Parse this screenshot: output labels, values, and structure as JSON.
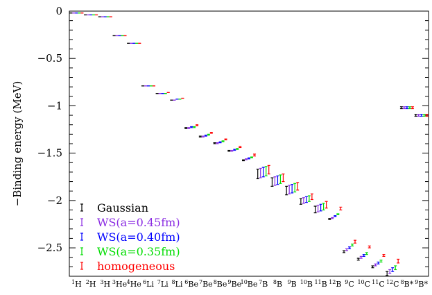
{
  "chart_data": {
    "type": "scatter",
    "title": "",
    "xlabel": "",
    "ylabel": "−Binding energy (MeV)",
    "ylim": [
      -2.8,
      0
    ],
    "yticks": [
      0,
      -0.5,
      -1,
      -1.5,
      -2,
      -2.5
    ],
    "ytick_labels": [
      "0",
      "−0.5",
      "−1",
      "−1.5",
      "−2",
      "−2.5"
    ],
    "grid": false,
    "legend_placement": "bottom-left",
    "categories": [
      {
        "sup": "1",
        "el": "H"
      },
      {
        "sup": "2",
        "el": "H"
      },
      {
        "sup": "3",
        "el": "H"
      },
      {
        "sup": "3",
        "el": "He"
      },
      {
        "sup": "4",
        "el": "He"
      },
      {
        "sup": "6",
        "el": "Li"
      },
      {
        "sup": "7",
        "el": "Li"
      },
      {
        "sup": "8",
        "el": "Li"
      },
      {
        "sup": "6",
        "el": "Be"
      },
      {
        "sup": "7",
        "el": "Be"
      },
      {
        "sup": "8",
        "el": "Be"
      },
      {
        "sup": "9",
        "el": "Be"
      },
      {
        "sup": "10",
        "el": "Be"
      },
      {
        "sup": "7",
        "el": "B"
      },
      {
        "sup": "8",
        "el": "B"
      },
      {
        "sup": "9",
        "el": "B"
      },
      {
        "sup": "10",
        "el": "B"
      },
      {
        "sup": "11",
        "el": "B"
      },
      {
        "sup": "12",
        "el": "B"
      },
      {
        "sup": "9",
        "el": "C"
      },
      {
        "sup": "10",
        "el": "C"
      },
      {
        "sup": "11",
        "el": "C"
      },
      {
        "sup": "12",
        "el": "C"
      },
      {
        "sup": "8",
        "el": "B*"
      },
      {
        "sup": "9",
        "el": "B*"
      }
    ],
    "series": [
      {
        "name": "Gaussian",
        "color": "#000000",
        "low": [
          -0.02,
          -0.04,
          -0.06,
          -0.26,
          -0.34,
          -0.79,
          -0.87,
          -0.94,
          -1.24,
          -1.33,
          -1.4,
          -1.48,
          -1.58,
          -1.77,
          -1.85,
          -1.94,
          -2.04,
          -2.13,
          -2.2,
          -2.55,
          -2.63,
          -2.71,
          -2.79,
          -1.03,
          -1.11
        ],
        "high": [
          -0.02,
          -0.04,
          -0.06,
          -0.26,
          -0.34,
          -0.79,
          -0.87,
          -0.94,
          -1.23,
          -1.32,
          -1.39,
          -1.47,
          -1.57,
          -1.67,
          -1.76,
          -1.85,
          -1.98,
          -2.06,
          -2.19,
          -2.53,
          -2.61,
          -2.69,
          -2.75,
          -1.01,
          -1.09
        ]
      },
      {
        "name": "WS(a=0.45fm)",
        "color": "#8a2be2",
        "low": [
          -0.02,
          -0.04,
          -0.06,
          -0.26,
          -0.34,
          -0.79,
          -0.87,
          -0.94,
          -1.24,
          -1.33,
          -1.4,
          -1.48,
          -1.57,
          -1.76,
          -1.84,
          -1.93,
          -2.03,
          -2.12,
          -2.19,
          -2.53,
          -2.61,
          -2.69,
          -2.77,
          -1.03,
          -1.11
        ],
        "high": [
          -0.02,
          -0.04,
          -0.06,
          -0.26,
          -0.34,
          -0.79,
          -0.87,
          -0.94,
          -1.23,
          -1.32,
          -1.39,
          -1.47,
          -1.56,
          -1.66,
          -1.75,
          -1.84,
          -1.97,
          -2.05,
          -2.18,
          -2.51,
          -2.59,
          -2.67,
          -2.73,
          -1.01,
          -1.09
        ]
      },
      {
        "name": "WS(a=0.40fm)",
        "color": "#0000ff",
        "low": [
          -0.02,
          -0.04,
          -0.06,
          -0.26,
          -0.34,
          -0.79,
          -0.87,
          -0.93,
          -1.23,
          -1.32,
          -1.39,
          -1.47,
          -1.56,
          -1.75,
          -1.83,
          -1.92,
          -2.02,
          -2.11,
          -2.17,
          -2.51,
          -2.59,
          -2.67,
          -2.75,
          -1.03,
          -1.11
        ],
        "high": [
          -0.02,
          -0.04,
          -0.06,
          -0.26,
          -0.34,
          -0.79,
          -0.87,
          -0.93,
          -1.22,
          -1.31,
          -1.38,
          -1.46,
          -1.55,
          -1.65,
          -1.74,
          -1.83,
          -1.96,
          -2.04,
          -2.16,
          -2.49,
          -2.57,
          -2.65,
          -2.71,
          -1.01,
          -1.09
        ]
      },
      {
        "name": "WS(a=0.35fm)",
        "color": "#00dd00",
        "low": [
          -0.02,
          -0.04,
          -0.06,
          -0.26,
          -0.34,
          -0.79,
          -0.87,
          -0.93,
          -1.23,
          -1.31,
          -1.38,
          -1.46,
          -1.55,
          -1.74,
          -1.82,
          -1.91,
          -2.01,
          -2.1,
          -2.15,
          -2.48,
          -2.57,
          -2.65,
          -2.73,
          -1.03,
          -1.11
        ],
        "high": [
          -0.02,
          -0.04,
          -0.06,
          -0.26,
          -0.34,
          -0.79,
          -0.87,
          -0.93,
          -1.22,
          -1.3,
          -1.37,
          -1.45,
          -1.54,
          -1.64,
          -1.73,
          -1.82,
          -1.95,
          -2.03,
          -2.14,
          -2.46,
          -2.55,
          -2.63,
          -2.69,
          -1.01,
          -1.09
        ]
      },
      {
        "name": "homogeneous",
        "color": "#ff0000",
        "low": [
          -0.02,
          -0.04,
          -0.06,
          -0.26,
          -0.34,
          -0.79,
          -0.86,
          -0.92,
          -1.21,
          -1.29,
          -1.36,
          -1.44,
          -1.53,
          -1.72,
          -1.8,
          -1.89,
          -1.99,
          -2.08,
          -2.1,
          -2.45,
          -2.5,
          -2.59,
          -2.66,
          -1.03,
          -1.11
        ],
        "high": [
          -0.02,
          -0.04,
          -0.06,
          -0.26,
          -0.34,
          -0.79,
          -0.86,
          -0.92,
          -1.2,
          -1.28,
          -1.35,
          -1.43,
          -1.51,
          -1.63,
          -1.72,
          -1.81,
          -1.93,
          -2.01,
          -2.07,
          -2.42,
          -2.48,
          -2.57,
          -2.62,
          -1.01,
          -1.09
        ]
      }
    ]
  }
}
